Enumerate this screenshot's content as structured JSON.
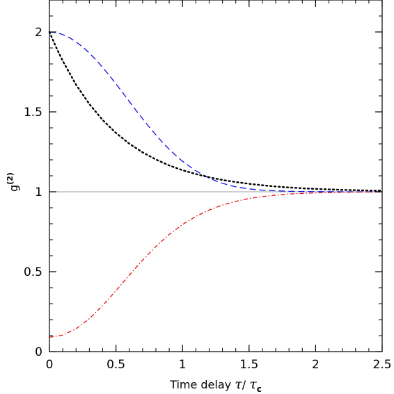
{
  "chart_data": {
    "type": "line",
    "title": "",
    "xlabel": {
      "prefix": "Time delay ",
      "tau": "τ",
      "slash": "/ ",
      "tau_c": "τ",
      "sub": "c"
    },
    "ylabel": {
      "base": "g",
      "sup": "(2)"
    },
    "xlim": [
      0,
      2.5
    ],
    "ylim": [
      0,
      2.2
    ],
    "xticks": [
      {
        "v": 0,
        "label": "0"
      },
      {
        "v": 0.5,
        "label": "0.5"
      },
      {
        "v": 1,
        "label": "1"
      },
      {
        "v": 1.5,
        "label": "1.5"
      },
      {
        "v": 2,
        "label": "2"
      },
      {
        "v": 2.5,
        "label": "2.5"
      }
    ],
    "yticks": [
      {
        "v": 0,
        "label": "0"
      },
      {
        "v": 0.5,
        "label": "0.5"
      },
      {
        "v": 1,
        "label": "1"
      },
      {
        "v": 1.5,
        "label": "1.5"
      },
      {
        "v": 2,
        "label": "2"
      }
    ],
    "x_minor_step": 0.1,
    "y_minor_step": 0.1,
    "grid": false,
    "legend": "none",
    "reference_line": {
      "y": 1,
      "color": "#b0b0b0"
    },
    "series": [
      {
        "color": "#1010e0",
        "style": "dashed",
        "x": [
          0,
          0.05,
          0.1,
          0.15,
          0.2,
          0.25,
          0.3,
          0.35,
          0.4,
          0.45,
          0.5,
          0.55,
          0.6,
          0.65,
          0.7,
          0.75,
          0.8,
          0.85,
          0.9,
          0.95,
          1.0,
          1.1,
          1.2,
          1.3,
          1.4,
          1.5,
          1.6,
          1.8,
          2.0,
          2.25,
          2.5
        ],
        "y": [
          2.0,
          1.996,
          1.984,
          1.965,
          1.938,
          1.906,
          1.868,
          1.825,
          1.778,
          1.728,
          1.675,
          1.621,
          1.565,
          1.51,
          1.457,
          1.405,
          1.356,
          1.309,
          1.266,
          1.227,
          1.191,
          1.131,
          1.085,
          1.053,
          1.031,
          1.018,
          1.01,
          1.003,
          1.001,
          1.0,
          1.0
        ]
      },
      {
        "color": "#000000",
        "style": "dotted",
        "x": [
          0,
          0.05,
          0.1,
          0.2,
          0.3,
          0.4,
          0.5,
          0.6,
          0.7,
          0.8,
          0.9,
          1.0,
          1.1,
          1.2,
          1.3,
          1.4,
          1.5,
          1.6,
          1.7,
          1.8,
          1.9,
          2.0,
          2.1,
          2.2,
          2.3,
          2.4,
          2.5
        ],
        "y": [
          2.0,
          1.905,
          1.819,
          1.67,
          1.549,
          1.449,
          1.368,
          1.301,
          1.247,
          1.202,
          1.165,
          1.135,
          1.111,
          1.091,
          1.074,
          1.061,
          1.05,
          1.041,
          1.033,
          1.027,
          1.022,
          1.018,
          1.015,
          1.012,
          1.01,
          1.008,
          1.007
        ]
      },
      {
        "color": "#e01010",
        "style": "dashdot",
        "x": [
          0,
          0.1,
          0.2,
          0.3,
          0.4,
          0.5,
          0.6,
          0.7,
          0.8,
          0.9,
          1.0,
          1.1,
          1.2,
          1.3,
          1.4,
          1.5,
          1.6,
          1.7,
          1.8,
          1.9,
          2.0,
          2.1,
          2.2,
          2.3,
          2.4,
          2.5
        ],
        "y": [
          0.09,
          0.103,
          0.143,
          0.206,
          0.288,
          0.381,
          0.478,
          0.572,
          0.658,
          0.733,
          0.795,
          0.846,
          0.886,
          0.917,
          0.94,
          0.958,
          0.97,
          0.979,
          0.986,
          0.99,
          0.993,
          0.995,
          0.997,
          0.998,
          0.999,
          0.999
        ]
      }
    ]
  }
}
